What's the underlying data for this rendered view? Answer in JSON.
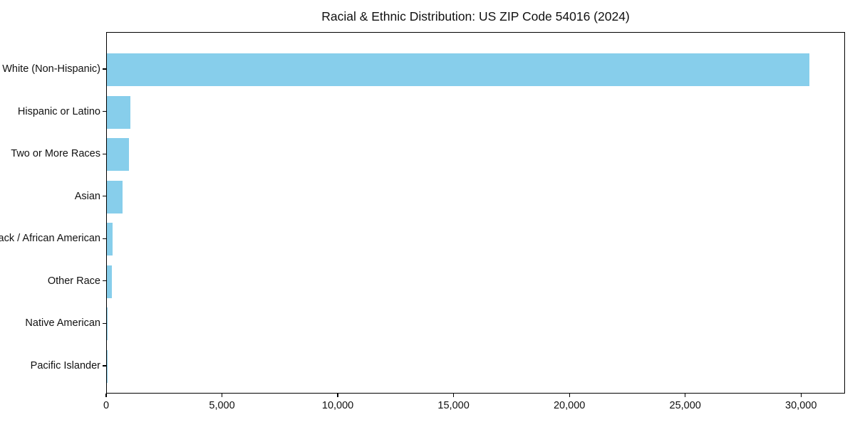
{
  "chart_data": {
    "type": "bar",
    "orientation": "horizontal",
    "title": "Racial & Ethnic Distribution: US ZIP Code 54016 (2024)",
    "categories": [
      "White (Non-Hispanic)",
      "Hispanic or Latino",
      "Two or More Races",
      "Asian",
      "Black / African American",
      "Other Race",
      "Native American",
      "Pacific Islander"
    ],
    "values": [
      30330,
      1010,
      940,
      670,
      240,
      205,
      40,
      10
    ],
    "xlabel": "",
    "ylabel": "",
    "xlim": [
      0,
      31900
    ],
    "xticks": [
      0,
      5000,
      10000,
      15000,
      20000,
      25000,
      30000
    ],
    "xtick_labels": [
      "0",
      "5,000",
      "10,000",
      "15,000",
      "20,000",
      "25,000",
      "30,000"
    ],
    "bar_color": "#87CEEB",
    "text_color": "#111111",
    "frame_color": "#000000",
    "grid": false,
    "legend": null
  }
}
